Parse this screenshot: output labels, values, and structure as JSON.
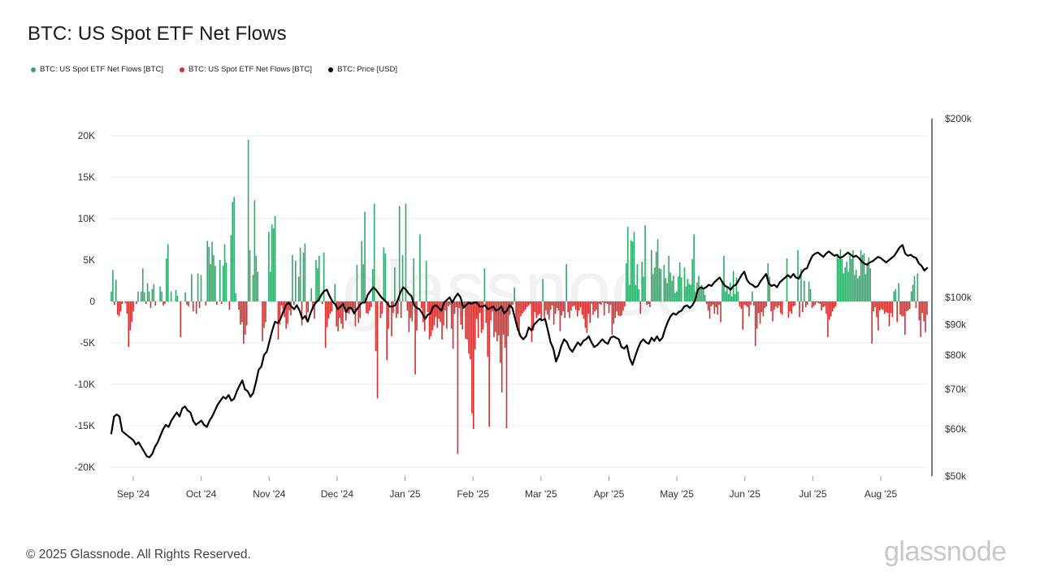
{
  "title": "BTC: US Spot ETF Net Flows",
  "legend": [
    {
      "label": "BTC: US Spot ETF Net Flows [BTC]",
      "color": "#2eaa6b"
    },
    {
      "label": "BTC: US Spot ETF Net Flows [BTC]",
      "color": "#d62d2d"
    },
    {
      "label": "BTC: Price [USD]",
      "color": "#000000"
    }
  ],
  "footer": "© 2025 Glassnode. All Rights Reserved.",
  "brand": "glassnode",
  "watermark": "glassnode",
  "chart_data": {
    "type": "bar",
    "title": "BTC: US Spot ETF Net Flows",
    "y_left": {
      "min": -20000,
      "max": 20000,
      "ticks": [
        20000,
        15000,
        10000,
        5000,
        0,
        -5000,
        -10000,
        -15000,
        -20000
      ],
      "tick_labels": [
        "20K",
        "15K",
        "10K",
        "5K",
        "0",
        "-5K",
        "-10K",
        "-15K",
        "-20K"
      ]
    },
    "y_right": {
      "scale": "log",
      "min": 50000,
      "max": 200000,
      "ticks": [
        200000,
        100000,
        90000,
        80000,
        70000,
        60000,
        50000
      ],
      "tick_labels": [
        "$200k",
        "$100k",
        "$90k",
        "$80k",
        "$70k",
        "$60k",
        "$50k"
      ]
    },
    "x_ticks": [
      "Sep '24",
      "Oct '24",
      "Nov '24",
      "Dec '24",
      "Jan '25",
      "Feb '25",
      "Mar '25",
      "Apr '25",
      "May '25",
      "Jun '25",
      "Jul '25",
      "Aug '25"
    ],
    "grid": true,
    "legend_position": "top-left",
    "colors": {
      "inflow": "#2eaa6b",
      "outflow": "#d62d2d",
      "price": "#000000"
    },
    "series": [
      {
        "name": "BTC: US Spot ETF Net Flows [BTC]",
        "unit": "BTC",
        "note": "daily net flows, chronological from late Aug 2024 to late Aug 2025",
        "values": [
          1200,
          3800,
          -400,
          2600,
          -1600,
          -1800,
          -1200,
          -300,
          0,
          -200,
          -1500,
          -5500,
          -3500,
          -2500,
          -1200,
          0,
          -300,
          1200,
          0,
          1200,
          4000,
          1100,
          -300,
          2200,
          1200,
          -800,
          1500,
          2100,
          -500,
          0,
          0,
          1800,
          1200,
          -500,
          -300,
          5200,
          6900,
          0,
          1200,
          0,
          0,
          1400,
          700,
          0,
          -4300,
          0,
          0,
          1100,
          -400,
          -600,
          0,
          3300,
          -1200,
          0,
          -1500,
          3400,
          -800,
          3200,
          0,
          0,
          -500,
          7300,
          6600,
          4500,
          7200,
          5600,
          4300,
          -400,
          0,
          5000,
          -300,
          4300,
          6900,
          4700,
          0,
          -1000,
          8000,
          12000,
          12600,
          1000,
          0,
          -1000,
          -2800,
          -2500,
          -5100,
          -4000,
          -2900,
          19500,
          6200,
          0,
          3200,
          12200,
          5500,
          3600,
          0,
          0,
          -4800,
          -3200,
          -2500,
          0,
          8400,
          3600,
          9300,
          8800,
          10300,
          0,
          -4600,
          -2800,
          -500,
          -900,
          -1900,
          -3300,
          -2700,
          -1100,
          -1700,
          5600,
          -400,
          4900,
          0,
          3000,
          6500,
          -2900,
          5900,
          7000,
          -2300,
          -1300,
          0,
          1600,
          -1000,
          -2100,
          5000,
          4000,
          5500,
          0,
          -300,
          5900,
          -5600,
          -3100,
          -2100,
          -1500,
          -1200,
          0,
          2100,
          -3000,
          -3600,
          -2000,
          -2700,
          -3300,
          -500,
          -2300,
          -1400,
          -1500,
          -1000,
          -800,
          -1100,
          -3000,
          4400,
          -2600,
          -2000,
          7300,
          4500,
          10800,
          -1400,
          -1500,
          -1100,
          -700,
          3900,
          11800,
          -6000,
          -11700,
          0,
          -2000,
          -1500,
          6500,
          5800,
          -7100,
          -3300,
          0,
          -4200,
          -1400,
          4100,
          -2000,
          -1500,
          11500,
          -2000,
          5600,
          0,
          11800,
          -1100,
          -3700,
          -2000,
          -2400,
          5200,
          -8800,
          -3500,
          0,
          8100,
          -800,
          -2500,
          -3600,
          4900,
          -1300,
          -4600,
          -4200,
          -3500,
          -2900,
          -1900,
          -3200,
          -2100,
          -2500,
          -4600,
          -2900,
          -1100,
          -3300,
          -600,
          -400,
          -3300,
          -5700,
          -1500,
          -700,
          -18400,
          -800,
          -2800,
          -3400,
          -600,
          -4500,
          -4600,
          -6300,
          -7000,
          -13500,
          -15400,
          -5800,
          -2100,
          -4400,
          -1400,
          -3800,
          -3400,
          4000,
          -2600,
          -6700,
          -15100,
          -2300,
          -1200,
          -4300,
          -3700,
          -4800,
          -4100,
          -7400,
          -11000,
          -4000,
          -5600,
          -15300,
          -4200,
          -1600,
          -800,
          -400,
          1700,
          -2300,
          -3500,
          -4100,
          -1800,
          -1500,
          -1200,
          -1000,
          -700,
          -500,
          -300,
          -4900,
          -3500,
          -1300,
          -2000,
          -1700,
          -1500,
          -2400,
          2700,
          -2000,
          -1100,
          -1600,
          -2200,
          -1000,
          -500,
          -2800,
          -1500,
          -800,
          -1100,
          -3600,
          -1700,
          -1200,
          -2000,
          4500,
          -1300,
          -2000,
          -1100,
          -600,
          -500,
          -1000,
          -1800,
          -1100,
          -700,
          -1600,
          -2100,
          -3200,
          -3800,
          -1500,
          -2600,
          -300,
          -1600,
          -1200,
          -1000,
          -2000,
          -300,
          -400,
          -100,
          -1700,
          -200,
          -300,
          -1400,
          -400,
          -4000,
          -2700,
          -2000,
          -1200,
          -1700,
          -1800,
          -1700,
          -1100,
          -600,
          4600,
          9000,
          2000,
          7400,
          7200,
          8400,
          2000,
          4500,
          1500,
          -1500,
          4800,
          3000,
          9200,
          -400,
          -300,
          -700,
          6200,
          3300,
          4100,
          6000,
          7500,
          4000,
          3900,
          0,
          4400,
          2800,
          2200,
          5500,
          3500,
          2500,
          3100,
          1000,
          1200,
          3000,
          4700,
          2900,
          0,
          4100,
          1800,
          2700,
          2100,
          2000,
          5100,
          8100,
          1200,
          2300,
          3100,
          1800,
          2000,
          1600,
          800,
          -300,
          -1100,
          -2100,
          -600,
          -400,
          -1500,
          -700,
          -1600,
          -400,
          -2500,
          2500,
          5500,
          1200,
          1900,
          900,
          2300,
          600,
          3700,
          900,
          2900,
          1200,
          -600,
          -900,
          -3400,
          -400,
          -500,
          -700,
          -1800,
          -400,
          1200,
          -500,
          -5400,
          -3300,
          -1400,
          -2700,
          -1300,
          -1800,
          -800,
          -600,
          4600,
          3000,
          -1200,
          -2400,
          -1000,
          -600,
          -800,
          -500,
          -1400,
          -1600,
          0,
          0,
          5200,
          -2000,
          -1200,
          -1500,
          -600,
          -500,
          0,
          6200,
          -1900,
          3900,
          -1300,
          2500,
          -700,
          -400,
          2400,
          1500,
          -800,
          -600,
          -400,
          -100,
          -200,
          -300,
          -1100,
          -700,
          -600,
          -1500,
          -4300,
          -2200,
          -1800,
          -1200,
          -800,
          -600,
          5500,
          5100,
          6300,
          5100,
          3400,
          4100,
          4800,
          3600,
          5500,
          5100,
          6200,
          3200,
          3800,
          2800,
          3100,
          6200,
          5600,
          5800,
          3300,
          4700,
          5300,
          4000,
          -5100,
          -1200,
          -700,
          -1900,
          -3500,
          -1100,
          -900,
          -1000,
          -1500,
          -1300,
          -1400,
          -3000,
          -1400,
          -1900,
          1200,
          1500,
          -2500,
          2200,
          -1600,
          -1800,
          -1800,
          -4000,
          -1200,
          -1100,
          -900,
          1200,
          2000,
          3100,
          -800,
          3400,
          -2300,
          -4300,
          -1400,
          -2400,
          -3700,
          -1600
        ],
        "color_rule": "positive values green (#2eaa6b), negative values red (#d62d2d)"
      },
      {
        "name": "BTC: Price [USD]",
        "unit": "USD",
        "color": "#000000",
        "axis": "right",
        "values": [
          59000,
          63000,
          63500,
          63000,
          59500,
          59000,
          58500,
          58000,
          57500,
          56500,
          57000,
          56000,
          55000,
          54000,
          53800,
          54500,
          56000,
          57000,
          58500,
          60000,
          61000,
          60500,
          62000,
          63000,
          64000,
          63000,
          65000,
          65500,
          64500,
          64000,
          62000,
          61000,
          61500,
          62000,
          61000,
          60500,
          62000,
          63000,
          64500,
          66000,
          67000,
          68000,
          67500,
          68500,
          67000,
          67500,
          69500,
          71000,
          72500,
          70000,
          69500,
          68000,
          69000,
          72000,
          75500,
          76500,
          80000,
          81000,
          84500,
          88000,
          91000,
          90500,
          92000,
          94500,
          97000,
          98000,
          96500,
          95500,
          97000,
          95000,
          92000,
          93000,
          91000,
          94000,
          96500,
          98000,
          99000,
          101000,
          102500,
          103000,
          100500,
          98500,
          97500,
          95500,
          96500,
          97500,
          94500,
          96000,
          96000,
          94000,
          95500,
          97000,
          98000,
          98000,
          101000,
          102500,
          104000,
          103000,
          101500,
          100000,
          99000,
          98000,
          96500,
          96500,
          97000,
          99000,
          102000,
          104000,
          103000,
          101500,
          100500,
          97000,
          96000,
          95500,
          94000,
          92000,
          93500,
          94000,
          96500,
          97000,
          96000,
          95000,
          98000,
          99000,
          100000,
          98000,
          100000,
          101500,
          100000,
          96000,
          97000,
          98000,
          97500,
          98000,
          98000,
          96500,
          96500,
          97000,
          95500,
          96000,
          96500,
          95000,
          95500,
          96500,
          94000,
          95000,
          97000,
          96000,
          92000,
          88500,
          86000,
          85000,
          86000,
          89000,
          88000,
          90000,
          91000,
          92000,
          91500,
          92000,
          88000,
          84000,
          82000,
          78000,
          80000,
          83000,
          85000,
          84000,
          82000,
          81000,
          82500,
          84000,
          83000,
          84500,
          85000,
          86000,
          84000,
          82500,
          83000,
          84000,
          85000,
          84000,
          83500,
          85500,
          86000,
          85500,
          85000,
          82500,
          82000,
          83000,
          79000,
          77000,
          79500,
          82000,
          84000,
          85000,
          84000,
          83500,
          85500,
          84500,
          86000,
          84500,
          85500,
          88500,
          91000,
          93000,
          94000,
          93500,
          94500,
          95000,
          96500,
          97000,
          96000,
          97000,
          99000,
          103000,
          104000,
          103500,
          104000,
          105000,
          104500,
          106000,
          107000,
          108000,
          106000,
          104500,
          104000,
          103000,
          104500,
          105000,
          107000,
          109000,
          110500,
          107000,
          105500,
          105000,
          104000,
          104500,
          106500,
          108000,
          109500,
          105500,
          104500,
          105000,
          104000,
          106000,
          107000,
          108000,
          109000,
          108000,
          109500,
          108000,
          107500,
          110000,
          111500,
          112000,
          115000,
          117500,
          118500,
          119000,
          118000,
          117000,
          118500,
          119500,
          118500,
          117500,
          118000,
          116500,
          117000,
          118000,
          119000,
          118000,
          117000,
          117500,
          116500,
          115000,
          114000,
          113500,
          114500,
          115000,
          116000,
          117000,
          116500,
          115500,
          114500,
          115500,
          116500,
          117500,
          119500,
          121500,
          122500,
          118500,
          117500,
          118000,
          117000,
          116500,
          114000,
          113000,
          111000,
          112000
        ]
      }
    ]
  }
}
